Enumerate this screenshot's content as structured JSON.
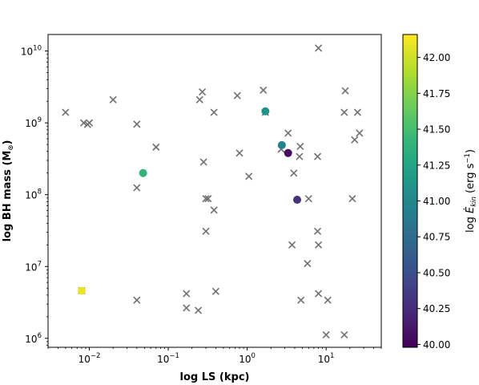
{
  "chart_data": {
    "type": "scatter",
    "title": "",
    "xlabel": "log LS (kpc)",
    "ylabel_main": "log BH mass (M",
    "ylabel_sub": "⊙",
    "ylabel_tail": ")",
    "xscale": "log",
    "yscale": "log",
    "xlim": [
      0.003,
      50
    ],
    "ylim": [
      750000,
      17000000000
    ],
    "x_ticks": [
      {
        "value": 0.01,
        "base": "10",
        "exp": "−2"
      },
      {
        "value": 0.1,
        "base": "10",
        "exp": "−1"
      },
      {
        "value": 1,
        "base": "10",
        "exp": "0"
      },
      {
        "value": 10,
        "base": "10",
        "exp": "1"
      }
    ],
    "y_ticks": [
      {
        "value": 1000000,
        "base": "10",
        "exp": "6"
      },
      {
        "value": 10000000,
        "base": "10",
        "exp": "7"
      },
      {
        "value": 100000000,
        "base": "10",
        "exp": "8"
      },
      {
        "value": 1000000000,
        "base": "10",
        "exp": "9"
      },
      {
        "value": 10000000000,
        "base": "10",
        "exp": "10"
      }
    ],
    "grid": false,
    "marker_color": "#707070",
    "series": [
      {
        "marker": "x",
        "points": [
          [
            0.005,
            1400000000.0
          ],
          [
            0.0085,
            1000000000.0
          ],
          [
            0.0095,
            950000000.0
          ],
          [
            0.01,
            1000000000.0
          ],
          [
            0.02,
            2100000000.0
          ],
          [
            0.04,
            960000000.0
          ],
          [
            0.07,
            460000000.0
          ],
          [
            0.04,
            125000000.0
          ],
          [
            0.008,
            4600000.0
          ],
          [
            0.04,
            3400000.0
          ],
          [
            0.17,
            4200000.0
          ],
          [
            0.17,
            2650000.0
          ],
          [
            0.24,
            2450000.0
          ],
          [
            0.4,
            4500000.0
          ],
          [
            0.25,
            2100000000.0
          ],
          [
            0.27,
            2700000000.0
          ],
          [
            0.38,
            1400000000.0
          ],
          [
            0.28,
            285000000.0
          ],
          [
            0.3,
            88000000.0
          ],
          [
            0.32,
            88000000.0
          ],
          [
            0.38,
            61000000.0
          ],
          [
            0.3,
            31000000.0
          ],
          [
            0.75,
            2400000000.0
          ],
          [
            0.8,
            380000000.0
          ],
          [
            1.05,
            180000000.0
          ],
          [
            1.6,
            2850000000.0
          ],
          [
            1.7,
            1400000000.0
          ],
          [
            2.7,
            430000000.0
          ],
          [
            3.3,
            720000000.0
          ],
          [
            4.7,
            470000000.0
          ],
          [
            4.6,
            340000000.0
          ],
          [
            3.9,
            200000000.0
          ],
          [
            6.0,
            88000000.0
          ],
          [
            3.7,
            20000000.0
          ],
          [
            5.8,
            11000000.0
          ],
          [
            7.8,
            31000000.0
          ],
          [
            8.0,
            20000000.0
          ],
          [
            8.0,
            4200000.0
          ],
          [
            4.8,
            3400000.0
          ],
          [
            10.5,
            3400000.0
          ],
          [
            10.0,
            1120000.0
          ],
          [
            17.0,
            1120000.0
          ],
          [
            8.0,
            11000000000.0
          ],
          [
            17.5,
            2800000000.0
          ],
          [
            17.0,
            1400000000.0
          ],
          [
            25.0,
            1400000000.0
          ],
          [
            26.5,
            720000000.0
          ],
          [
            23.0,
            580000000.0
          ],
          [
            7.8,
            340000000.0
          ],
          [
            21.5,
            88000000.0
          ]
        ]
      },
      {
        "marker": "o",
        "colored_by": "log Ekin",
        "points": [
          [
            0.008,
            4600000.0,
            42.1
          ],
          [
            0.048,
            200000000.0,
            41.4
          ],
          [
            1.7,
            1450000000.0,
            41.1
          ],
          [
            2.75,
            490000000.0,
            40.95
          ],
          [
            3.3,
            380000000.0,
            40.05
          ],
          [
            4.3,
            85000000.0,
            40.3
          ]
        ]
      }
    ],
    "colorbar": {
      "colormap": "viridis",
      "range": [
        39.98,
        42.16
      ],
      "ticks": [
        "40.00",
        "40.25",
        "40.50",
        "40.75",
        "41.00",
        "41.25",
        "41.50",
        "41.75",
        "42.00"
      ],
      "tick_values": [
        40.0,
        40.25,
        40.5,
        40.75,
        41.0,
        41.25,
        41.5,
        41.75,
        42.0
      ],
      "label_main": "log ",
      "label_symbol": "Ė",
      "label_sub": "kin",
      "label_units": " (erg s",
      "label_sup": "−1",
      "label_tail": ")",
      "colors": [
        "#440154",
        "#482878",
        "#3e4a89",
        "#31688e",
        "#26828e",
        "#1f9e89",
        "#35b779",
        "#6ece58",
        "#b5de2b",
        "#fde725"
      ]
    }
  }
}
